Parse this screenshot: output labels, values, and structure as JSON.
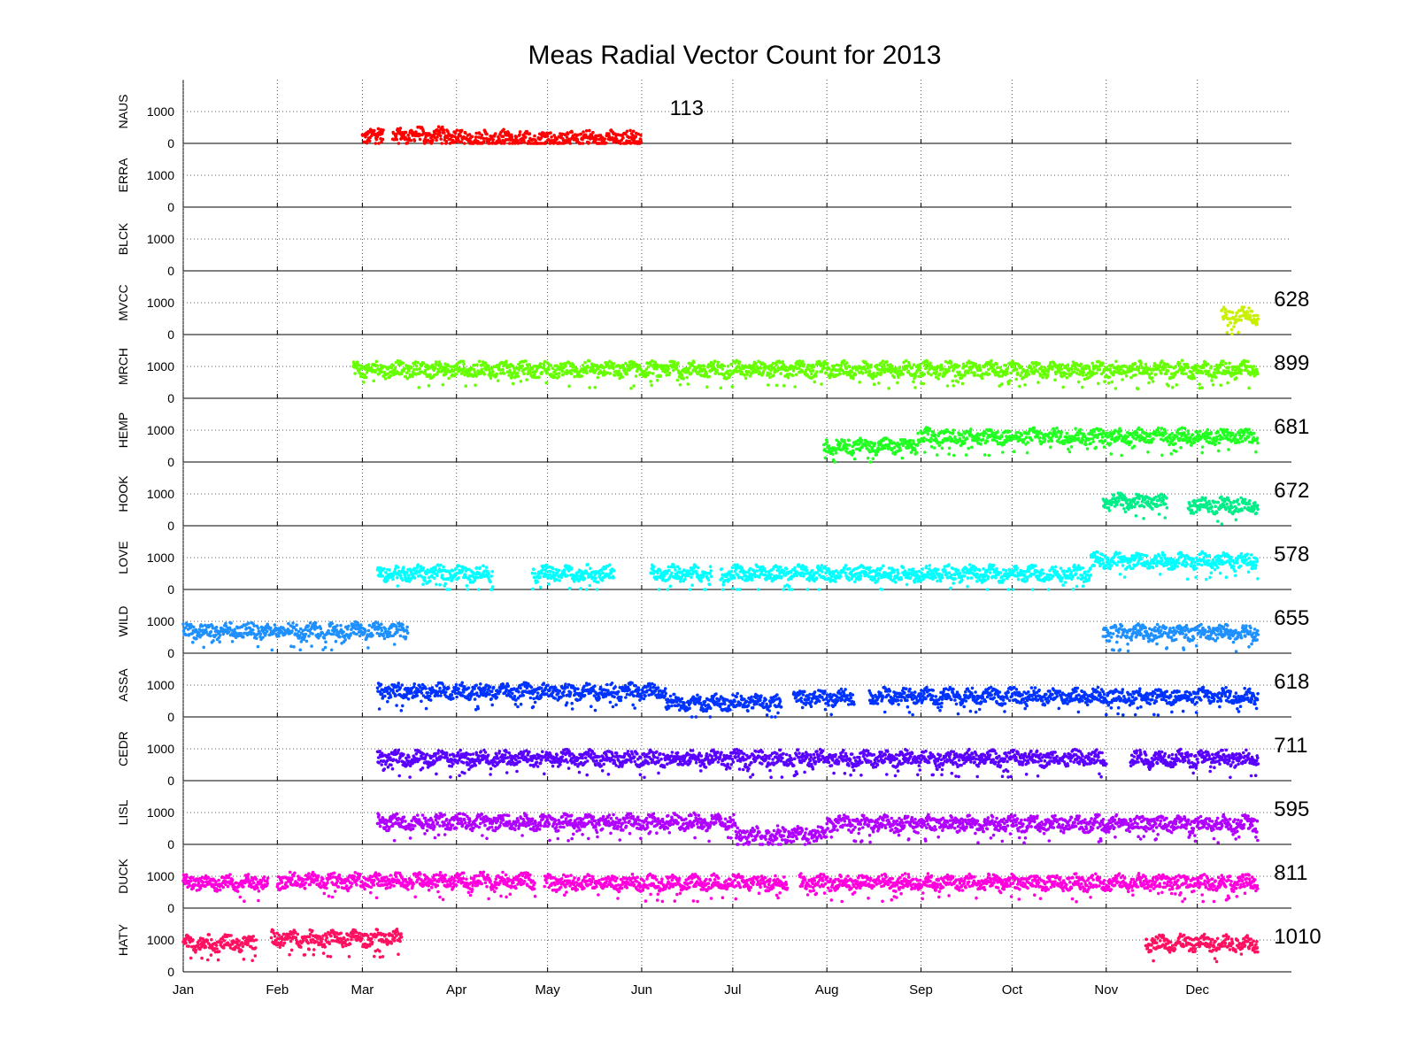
{
  "chart_data": {
    "type": "scatter",
    "title": "Meas Radial Vector Count for 2013",
    "x_unit": "day of year 2013",
    "xlim": [
      1,
      366
    ],
    "ylim": [
      0,
      2000
    ],
    "y_ticks": [
      "0",
      "1000"
    ],
    "grid": true,
    "months": [
      {
        "label": "Jan",
        "day": 1
      },
      {
        "label": "Feb",
        "day": 32
      },
      {
        "label": "Mar",
        "day": 60
      },
      {
        "label": "Apr",
        "day": 91
      },
      {
        "label": "May",
        "day": 121
      },
      {
        "label": "Jun",
        "day": 152
      },
      {
        "label": "Jul",
        "day": 182
      },
      {
        "label": "Aug",
        "day": 213
      },
      {
        "label": "Sep",
        "day": 244
      },
      {
        "label": "Oct",
        "day": 274
      },
      {
        "label": "Nov",
        "day": 305
      },
      {
        "label": "Dec",
        "day": 335
      }
    ],
    "stations": [
      {
        "name": "NAUS",
        "color": "#ff0000",
        "latest": "113",
        "latest_day": 156,
        "latest_value": 113,
        "segments": [
          {
            "start": 60,
            "end": 67,
            "level": 250
          },
          {
            "start": 70,
            "end": 92,
            "level": 250
          },
          {
            "start": 92,
            "end": 152,
            "level": 150
          }
        ]
      },
      {
        "name": "ERRA",
        "color": "#ff6a00",
        "latest": "",
        "segments": []
      },
      {
        "name": "BLCK",
        "color": "#ffd000",
        "latest": "",
        "segments": []
      },
      {
        "name": "MVCC",
        "color": "#c8f000",
        "latest": "628",
        "latest_day": 355,
        "latest_value": 628,
        "segments": [
          {
            "start": 343,
            "end": 355,
            "level": 600
          }
        ]
      },
      {
        "name": "MRCH",
        "color": "#66ff00",
        "latest": "899",
        "latest_day": 355,
        "latest_value": 899,
        "segments": [
          {
            "start": 57,
            "end": 355,
            "level": 900
          }
        ]
      },
      {
        "name": "HEMP",
        "color": "#22ff22",
        "latest": "681",
        "latest_day": 355,
        "latest_value": 681,
        "segments": [
          {
            "start": 212,
            "end": 243,
            "level": 500
          },
          {
            "start": 243,
            "end": 355,
            "level": 800
          }
        ]
      },
      {
        "name": "HOOK",
        "color": "#00ee88",
        "latest": "672",
        "latest_day": 355,
        "latest_value": 672,
        "segments": [
          {
            "start": 304,
            "end": 325,
            "level": 750
          },
          {
            "start": 332,
            "end": 355,
            "level": 650
          }
        ]
      },
      {
        "name": "LOVE",
        "color": "#00ffff",
        "latest": "578",
        "latest_day": 355,
        "latest_value": 578,
        "segments": [
          {
            "start": 65,
            "end": 103,
            "level": 500
          },
          {
            "start": 116,
            "end": 143,
            "level": 500
          },
          {
            "start": 155,
            "end": 175,
            "level": 500
          },
          {
            "start": 178,
            "end": 300,
            "level": 500
          },
          {
            "start": 300,
            "end": 355,
            "level": 900
          }
        ]
      },
      {
        "name": "WILD",
        "color": "#1e90ff",
        "latest": "655",
        "latest_day": 355,
        "latest_value": 655,
        "segments": [
          {
            "start": 1,
            "end": 75,
            "level": 700
          },
          {
            "start": 304,
            "end": 355,
            "level": 650
          }
        ]
      },
      {
        "name": "ASSA",
        "color": "#0033ff",
        "latest": "618",
        "latest_day": 355,
        "latest_value": 618,
        "segments": [
          {
            "start": 65,
            "end": 160,
            "level": 800
          },
          {
            "start": 160,
            "end": 198,
            "level": 450
          },
          {
            "start": 202,
            "end": 222,
            "level": 600
          },
          {
            "start": 227,
            "end": 355,
            "level": 650
          }
        ]
      },
      {
        "name": "CEDR",
        "color": "#5a00ff",
        "latest": "711",
        "latest_day": 355,
        "latest_value": 711,
        "segments": [
          {
            "start": 65,
            "end": 305,
            "level": 700
          },
          {
            "start": 313,
            "end": 355,
            "level": 700
          }
        ]
      },
      {
        "name": "LISL",
        "color": "#b000ff",
        "latest": "595",
        "latest_day": 355,
        "latest_value": 595,
        "segments": [
          {
            "start": 65,
            "end": 183,
            "level": 700
          },
          {
            "start": 183,
            "end": 213,
            "level": 300
          },
          {
            "start": 213,
            "end": 355,
            "level": 650
          }
        ]
      },
      {
        "name": "DUCK",
        "color": "#ff00dd",
        "latest": "811",
        "latest_day": 355,
        "latest_value": 811,
        "segments": [
          {
            "start": 1,
            "end": 29,
            "level": 800
          },
          {
            "start": 32,
            "end": 117,
            "level": 850
          },
          {
            "start": 120,
            "end": 200,
            "level": 800
          },
          {
            "start": 204,
            "end": 355,
            "level": 800
          }
        ]
      },
      {
        "name": "HATY",
        "color": "#ff1060",
        "latest": "1010",
        "latest_day": 355,
        "latest_value": 1010,
        "segments": [
          {
            "start": 1,
            "end": 25,
            "level": 900
          },
          {
            "start": 30,
            "end": 73,
            "level": 1050
          },
          {
            "start": 318,
            "end": 355,
            "level": 900
          }
        ]
      }
    ]
  }
}
